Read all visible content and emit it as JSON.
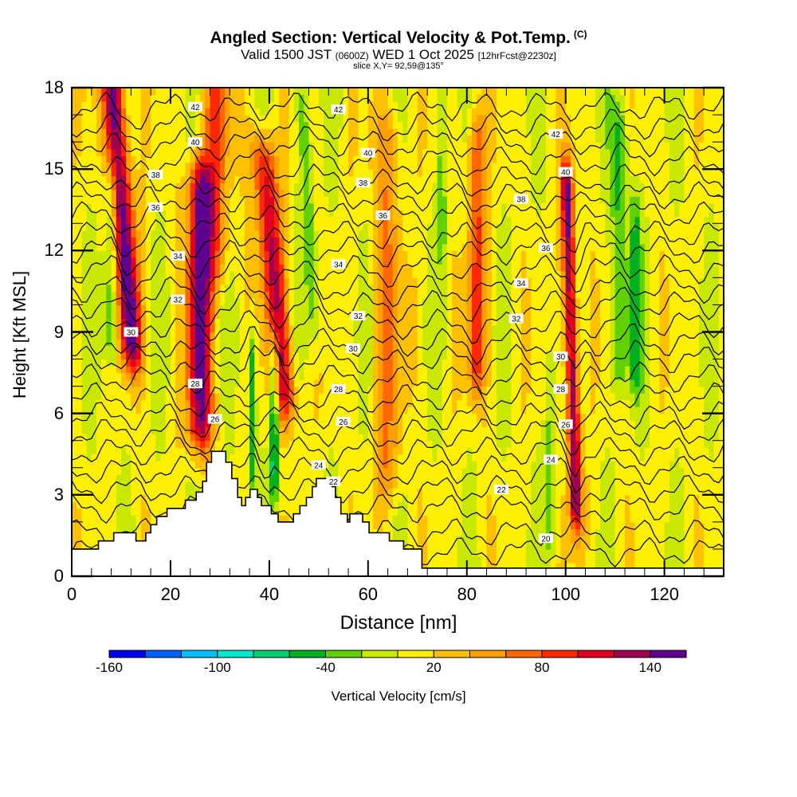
{
  "title": {
    "main": "Angled Section: Vertical Velocity & Pot.Temp.",
    "copyright": "(C)",
    "valid_prefix": "Valid 1500 JST",
    "valid_utc": "(0600Z)",
    "valid_date": "WED 1 Oct 2025",
    "forecast": "[12hrFcst@2230z]",
    "slice": "slice X,Y= 92,59@135°"
  },
  "chart_data": {
    "type": "heatmap",
    "title": "Angled Section: Vertical Velocity & Pot.Temp.",
    "xlabel": "Distance [nm]",
    "ylabel": "Height [Kft MSL]",
    "xlim": [
      0,
      132
    ],
    "ylim": [
      0,
      18
    ],
    "xticks": [
      "0",
      "20",
      "40",
      "60",
      "80",
      "100",
      "120"
    ],
    "yticks": [
      "0",
      "3",
      "6",
      "9",
      "12",
      "15",
      "18"
    ],
    "colorbar": {
      "label": "Vertical Velocity [cm/s]",
      "bounds": [
        -160,
        -140,
        -120,
        -100,
        -80,
        -60,
        -40,
        -20,
        0,
        20,
        40,
        60,
        80,
        100,
        120,
        140,
        160
      ],
      "tick_labels": [
        "-160",
        "-100",
        "-40",
        "20",
        "80",
        "140"
      ],
      "colors": [
        "#0000f0",
        "#0060ff",
        "#00c0ff",
        "#00e8d0",
        "#00d070",
        "#00b020",
        "#60d000",
        "#c8e800",
        "#fff000",
        "#ffc000",
        "#ffa000",
        "#ff6800",
        "#ff2800",
        "#e00020",
        "#a00050",
        "#600090"
      ]
    },
    "background_velocity": 0,
    "velocity_features": [
      {
        "x": 12,
        "y_bottom": 9,
        "y_top": 18,
        "tilt_nm_per_kft": -0.4,
        "peak": 150,
        "width": 2.2
      },
      {
        "x": 26,
        "y_bottom": 6,
        "y_top": 14,
        "tilt_nm_per_kft": 0,
        "peak": 135,
        "width": 2.4
      },
      {
        "x": 43,
        "y_bottom": 7,
        "y_top": 15,
        "tilt_nm_per_kft": -0.5,
        "peak": 110,
        "width": 2.4
      },
      {
        "x": 102,
        "y_bottom": 3,
        "y_top": 14,
        "tilt_nm_per_kft": -0.15,
        "peak": 145,
        "width": 1.3
      },
      {
        "x": 82,
        "y_bottom": 8,
        "y_top": 16,
        "tilt_nm_per_kft": 0,
        "peak": 75,
        "width": 1.8
      },
      {
        "x": 29,
        "y_bottom": 12,
        "y_top": 18,
        "tilt_nm_per_kft": 0,
        "peak": 60,
        "width": 3
      },
      {
        "x": 64,
        "y_bottom": 4,
        "y_top": 16,
        "tilt_nm_per_kft": 0,
        "peak": 45,
        "width": 3
      },
      {
        "x": 8,
        "y_bottom": 9,
        "y_top": 14,
        "tilt_nm_per_kft": 0,
        "peak": -55,
        "width": 1.4
      },
      {
        "x": 36.5,
        "y_bottom": 4.5,
        "y_top": 7.8,
        "tilt_nm_per_kft": 0,
        "peak": -70,
        "width": 0.8
      },
      {
        "x": 41,
        "y_bottom": 4,
        "y_top": 7.6,
        "tilt_nm_per_kft": 0,
        "peak": -100,
        "width": 0.8
      },
      {
        "x": 49,
        "y_bottom": 10,
        "y_top": 17,
        "tilt_nm_per_kft": -0.3,
        "peak": -45,
        "width": 1.4
      },
      {
        "x": 111,
        "y_bottom": 8,
        "y_top": 16,
        "tilt_nm_per_kft": 0,
        "peak": -55,
        "width": 1.6
      },
      {
        "x": 114,
        "y_bottom": 8,
        "y_top": 13,
        "tilt_nm_per_kft": 0,
        "peak": -50,
        "width": 1.2
      },
      {
        "x": 97,
        "y_bottom": 2,
        "y_top": 7,
        "tilt_nm_per_kft": 0,
        "peak": -40,
        "width": 1.2
      },
      {
        "x": 75,
        "y_bottom": 13,
        "y_top": 17,
        "tilt_nm_per_kft": 0,
        "peak": -40,
        "width": 1
      }
    ],
    "theta_contours": {
      "levels": [
        19,
        20,
        21,
        22,
        23,
        24,
        25,
        26,
        27,
        28,
        29,
        30,
        31,
        32,
        33,
        34,
        35,
        36,
        37,
        38,
        39,
        40,
        41,
        42,
        43
      ],
      "base_heights_kft": [
        0.9,
        1.6,
        2.5,
        3.2,
        3.9,
        4.6,
        5.3,
        5.9,
        6.6,
        7.3,
        8.0,
        8.6,
        9.3,
        10.0,
        10.6,
        11.3,
        12.0,
        12.6,
        13.3,
        14.0,
        14.6,
        15.3,
        16.0,
        16.6,
        17.3
      ],
      "labels": [
        {
          "text": "42",
          "x": 25,
          "y": 17.3
        },
        {
          "text": "42",
          "x": 54,
          "y": 17.2
        },
        {
          "text": "42",
          "x": 98,
          "y": 16.3
        },
        {
          "text": "40",
          "x": 25,
          "y": 16.0
        },
        {
          "text": "40",
          "x": 60,
          "y": 15.6
        },
        {
          "text": "40",
          "x": 100,
          "y": 14.9
        },
        {
          "text": "38",
          "x": 17,
          "y": 14.8
        },
        {
          "text": "38",
          "x": 59,
          "y": 14.5
        },
        {
          "text": "38",
          "x": 91,
          "y": 13.9
        },
        {
          "text": "36",
          "x": 17,
          "y": 13.6
        },
        {
          "text": "36",
          "x": 63,
          "y": 13.3
        },
        {
          "text": "36",
          "x": 96,
          "y": 12.1
        },
        {
          "text": "34",
          "x": 21.5,
          "y": 11.8
        },
        {
          "text": "34",
          "x": 54,
          "y": 11.5
        },
        {
          "text": "34",
          "x": 91,
          "y": 10.8
        },
        {
          "text": "32",
          "x": 21.5,
          "y": 10.2
        },
        {
          "text": "32",
          "x": 58,
          "y": 9.6
        },
        {
          "text": "32",
          "x": 90,
          "y": 9.5
        },
        {
          "text": "30",
          "x": 12,
          "y": 9.0
        },
        {
          "text": "30",
          "x": 57,
          "y": 8.4
        },
        {
          "text": "30",
          "x": 99,
          "y": 8.1
        },
        {
          "text": "28",
          "x": 25,
          "y": 7.1
        },
        {
          "text": "28",
          "x": 54,
          "y": 6.9
        },
        {
          "text": "28",
          "x": 99,
          "y": 6.9
        },
        {
          "text": "26",
          "x": 29,
          "y": 5.8
        },
        {
          "text": "26",
          "x": 55,
          "y": 5.7
        },
        {
          "text": "26",
          "x": 100,
          "y": 5.6
        },
        {
          "text": "24",
          "x": 50,
          "y": 4.1
        },
        {
          "text": "24",
          "x": 97,
          "y": 4.3
        },
        {
          "text": "22",
          "x": 53,
          "y": 3.5
        },
        {
          "text": "22",
          "x": 87,
          "y": 3.2
        },
        {
          "text": "20",
          "x": 96,
          "y": 1.4
        }
      ]
    },
    "terrain_profile": [
      [
        0,
        0.6
      ],
      [
        0,
        1.0
      ],
      [
        1,
        1.0
      ],
      [
        5.4,
        1.0
      ],
      [
        5.4,
        1.3
      ],
      [
        8.5,
        1.3
      ],
      [
        8.5,
        1.6
      ],
      [
        13,
        1.6
      ],
      [
        13,
        1.3
      ],
      [
        15,
        1.3
      ],
      [
        15,
        1.6
      ],
      [
        16,
        1.6
      ],
      [
        16,
        1.9
      ],
      [
        17.2,
        1.9
      ],
      [
        17.2,
        2.2
      ],
      [
        19.3,
        2.2
      ],
      [
        19.3,
        2.5
      ],
      [
        23,
        2.5
      ],
      [
        23,
        2.8
      ],
      [
        25.2,
        2.8
      ],
      [
        25.2,
        3.1
      ],
      [
        26.5,
        3.1
      ],
      [
        26.5,
        3.5
      ],
      [
        27.3,
        3.5
      ],
      [
        27.3,
        4.2
      ],
      [
        28.3,
        4.2
      ],
      [
        28.3,
        4.6
      ],
      [
        31.2,
        4.6
      ],
      [
        31.2,
        4.2
      ],
      [
        32.4,
        4.2
      ],
      [
        32.4,
        3.6
      ],
      [
        33.6,
        3.6
      ],
      [
        33.6,
        2.9
      ],
      [
        34.4,
        2.9
      ],
      [
        34.4,
        2.6
      ],
      [
        35.2,
        2.6
      ],
      [
        35.2,
        2.9
      ],
      [
        36.1,
        2.9
      ],
      [
        36.1,
        3.2
      ],
      [
        37.6,
        3.2
      ],
      [
        37.6,
        2.9
      ],
      [
        38.4,
        2.9
      ],
      [
        38.4,
        2.6
      ],
      [
        40.4,
        2.6
      ],
      [
        40.4,
        2.3
      ],
      [
        41.8,
        2.3
      ],
      [
        41.8,
        2.0
      ],
      [
        44.9,
        2.0
      ],
      [
        44.9,
        2.3
      ],
      [
        46.2,
        2.3
      ],
      [
        46.2,
        2.6
      ],
      [
        47.5,
        2.6
      ],
      [
        47.5,
        2.9
      ],
      [
        48.7,
        2.9
      ],
      [
        48.7,
        3.3
      ],
      [
        49.5,
        3.3
      ],
      [
        49.5,
        3.6
      ],
      [
        52.7,
        3.6
      ],
      [
        52.7,
        3.3
      ],
      [
        53.4,
        3.3
      ],
      [
        53.4,
        2.9
      ],
      [
        54.5,
        2.9
      ],
      [
        54.5,
        2.3
      ],
      [
        55.8,
        2.3
      ],
      [
        55.8,
        2.0
      ],
      [
        56.3,
        2.0
      ],
      [
        56.3,
        2.3
      ],
      [
        58.9,
        2.3
      ],
      [
        58.9,
        2.0
      ],
      [
        60.2,
        2.0
      ],
      [
        60.2,
        1.6
      ],
      [
        64.3,
        1.6
      ],
      [
        64.3,
        1.3
      ],
      [
        67.2,
        1.3
      ],
      [
        67.2,
        1.0
      ],
      [
        70.9,
        1.0
      ],
      [
        70.9,
        0.3
      ],
      [
        132,
        0.3
      ]
    ]
  }
}
